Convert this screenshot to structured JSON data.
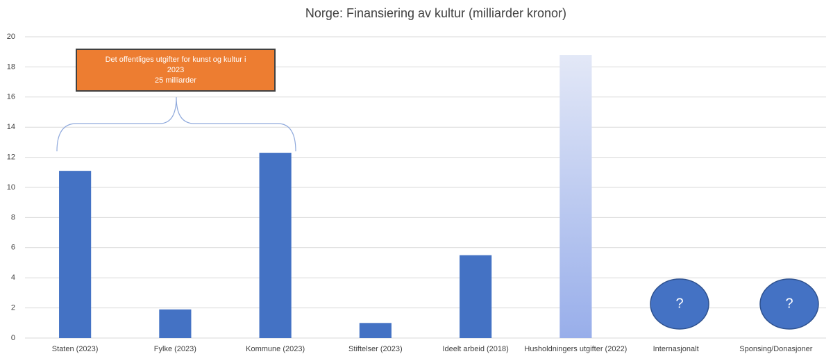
{
  "chart_data": {
    "type": "bar",
    "title": "Norge: Finansiering av kultur (milliarder kronor)",
    "categories": [
      "Staten  (2023)",
      "Fylke  (2023)",
      "Kommune  (2023)",
      "Stiftelser (2023)",
      "Ideelt arbeid (2018)",
      "Husholdningers utgifter (2022)",
      "Internasjonalt",
      "Sponsing/Donasjoner"
    ],
    "values": [
      11.1,
      1.9,
      12.3,
      1.0,
      5.5,
      18.8,
      null,
      null
    ],
    "color": "#4472c4",
    "ylim": [
      0,
      20
    ],
    "yticks": [
      0,
      2,
      4,
      6,
      8,
      10,
      12,
      14,
      16,
      18,
      20
    ],
    "grid": true,
    "annotations": [
      "Det offentliges utgifter for kunst og kultur i",
      "2023",
      "25 milliarder",
      "?",
      "?"
    ]
  }
}
